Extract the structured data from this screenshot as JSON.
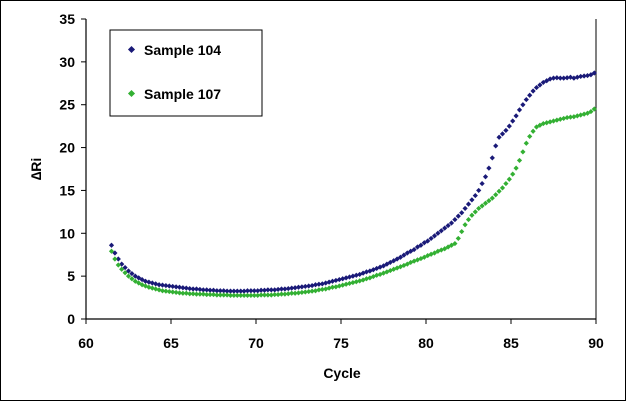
{
  "chart_data": {
    "type": "scatter",
    "title": "",
    "xlabel": "Cycle",
    "ylabel": "∆Ri",
    "xlim": [
      60,
      90
    ],
    "ylim": [
      0,
      35
    ],
    "xticks": [
      60,
      65,
      70,
      75,
      80,
      85,
      90
    ],
    "yticks": [
      0,
      5,
      10,
      15,
      20,
      25,
      30,
      35
    ],
    "grid": false,
    "legend": {
      "placement": "top-left",
      "boxed": true
    },
    "series": [
      {
        "name": "Sample 104",
        "color": "#1a1a78",
        "marker": "diamond",
        "points": [
          [
            61.5,
            8.6
          ],
          [
            61.7,
            7.7
          ],
          [
            61.9,
            7.0
          ],
          [
            62.1,
            6.4
          ],
          [
            62.3,
            6.0
          ],
          [
            62.5,
            5.6
          ],
          [
            62.7,
            5.3
          ],
          [
            62.9,
            5.0
          ],
          [
            63.1,
            4.8
          ],
          [
            63.3,
            4.6
          ],
          [
            63.5,
            4.4
          ],
          [
            63.7,
            4.3
          ],
          [
            63.9,
            4.2
          ],
          [
            64.1,
            4.1
          ],
          [
            64.3,
            4.0
          ],
          [
            64.5,
            3.95
          ],
          [
            64.7,
            3.9
          ],
          [
            64.9,
            3.85
          ],
          [
            65.1,
            3.8
          ],
          [
            65.3,
            3.75
          ],
          [
            65.5,
            3.7
          ],
          [
            65.7,
            3.65
          ],
          [
            65.9,
            3.6
          ],
          [
            66.1,
            3.55
          ],
          [
            66.3,
            3.5
          ],
          [
            66.5,
            3.5
          ],
          [
            66.7,
            3.45
          ],
          [
            66.9,
            3.4
          ],
          [
            67.1,
            3.4
          ],
          [
            67.3,
            3.35
          ],
          [
            67.5,
            3.35
          ],
          [
            67.7,
            3.3
          ],
          [
            67.9,
            3.3
          ],
          [
            68.1,
            3.3
          ],
          [
            68.3,
            3.25
          ],
          [
            68.5,
            3.25
          ],
          [
            68.7,
            3.25
          ],
          [
            68.9,
            3.25
          ],
          [
            69.1,
            3.25
          ],
          [
            69.3,
            3.25
          ],
          [
            69.5,
            3.3
          ],
          [
            69.7,
            3.3
          ],
          [
            69.9,
            3.3
          ],
          [
            70.1,
            3.3
          ],
          [
            70.3,
            3.35
          ],
          [
            70.5,
            3.35
          ],
          [
            70.7,
            3.4
          ],
          [
            70.9,
            3.4
          ],
          [
            71.1,
            3.4
          ],
          [
            71.3,
            3.45
          ],
          [
            71.5,
            3.5
          ],
          [
            71.7,
            3.5
          ],
          [
            71.9,
            3.55
          ],
          [
            72.1,
            3.6
          ],
          [
            72.3,
            3.65
          ],
          [
            72.5,
            3.7
          ],
          [
            72.7,
            3.75
          ],
          [
            72.9,
            3.8
          ],
          [
            73.1,
            3.85
          ],
          [
            73.3,
            3.9
          ],
          [
            73.5,
            4.0
          ],
          [
            73.7,
            4.05
          ],
          [
            73.9,
            4.1
          ],
          [
            74.1,
            4.2
          ],
          [
            74.3,
            4.3
          ],
          [
            74.5,
            4.4
          ],
          [
            74.7,
            4.5
          ],
          [
            74.9,
            4.6
          ],
          [
            75.1,
            4.7
          ],
          [
            75.3,
            4.8
          ],
          [
            75.5,
            4.9
          ],
          [
            75.7,
            5.0
          ],
          [
            75.9,
            5.1
          ],
          [
            76.1,
            5.2
          ],
          [
            76.3,
            5.35
          ],
          [
            76.5,
            5.5
          ],
          [
            76.7,
            5.6
          ],
          [
            76.9,
            5.75
          ],
          [
            77.1,
            5.9
          ],
          [
            77.3,
            6.05
          ],
          [
            77.5,
            6.2
          ],
          [
            77.7,
            6.4
          ],
          [
            77.9,
            6.6
          ],
          [
            78.1,
            6.8
          ],
          [
            78.3,
            7.0
          ],
          [
            78.5,
            7.2
          ],
          [
            78.7,
            7.45
          ],
          [
            78.9,
            7.7
          ],
          [
            79.1,
            7.9
          ],
          [
            79.3,
            8.1
          ],
          [
            79.5,
            8.4
          ],
          [
            79.7,
            8.6
          ],
          [
            79.9,
            8.9
          ],
          [
            80.1,
            9.1
          ],
          [
            80.3,
            9.4
          ],
          [
            80.5,
            9.7
          ],
          [
            80.7,
            10.0
          ],
          [
            80.9,
            10.3
          ],
          [
            81.1,
            10.6
          ],
          [
            81.3,
            10.9
          ],
          [
            81.5,
            11.2
          ],
          [
            81.7,
            11.6
          ],
          [
            81.9,
            12.0
          ],
          [
            82.1,
            12.4
          ],
          [
            82.3,
            12.9
          ],
          [
            82.5,
            13.4
          ],
          [
            82.7,
            13.9
          ],
          [
            82.9,
            14.4
          ],
          [
            83.1,
            15.0
          ],
          [
            83.3,
            15.8
          ],
          [
            83.5,
            16.6
          ],
          [
            83.7,
            17.6
          ],
          [
            83.9,
            18.8
          ],
          [
            84.1,
            20.2
          ],
          [
            84.3,
            21.2
          ],
          [
            84.5,
            21.6
          ],
          [
            84.7,
            22.0
          ],
          [
            84.9,
            22.5
          ],
          [
            85.1,
            23.1
          ],
          [
            85.3,
            23.7
          ],
          [
            85.5,
            24.4
          ],
          [
            85.7,
            25.0
          ],
          [
            85.9,
            25.6
          ],
          [
            86.1,
            26.1
          ],
          [
            86.3,
            26.6
          ],
          [
            86.5,
            27.0
          ],
          [
            86.7,
            27.3
          ],
          [
            86.9,
            27.6
          ],
          [
            87.1,
            27.8
          ],
          [
            87.3,
            28.0
          ],
          [
            87.5,
            28.1
          ],
          [
            87.7,
            28.15
          ],
          [
            87.9,
            28.1
          ],
          [
            88.1,
            28.1
          ],
          [
            88.3,
            28.15
          ],
          [
            88.5,
            28.2
          ],
          [
            88.7,
            28.1
          ],
          [
            88.9,
            28.2
          ],
          [
            89.1,
            28.3
          ],
          [
            89.3,
            28.35
          ],
          [
            89.5,
            28.4
          ],
          [
            89.7,
            28.5
          ],
          [
            89.9,
            28.7
          ]
        ]
      },
      {
        "name": "Sample 107",
        "color": "#33b033",
        "marker": "diamond",
        "points": [
          [
            61.5,
            7.9
          ],
          [
            61.7,
            7.0
          ],
          [
            61.9,
            6.3
          ],
          [
            62.1,
            5.8
          ],
          [
            62.3,
            5.4
          ],
          [
            62.5,
            5.0
          ],
          [
            62.7,
            4.7
          ],
          [
            62.9,
            4.4
          ],
          [
            63.1,
            4.2
          ],
          [
            63.3,
            4.0
          ],
          [
            63.5,
            3.85
          ],
          [
            63.7,
            3.7
          ],
          [
            63.9,
            3.6
          ],
          [
            64.1,
            3.5
          ],
          [
            64.3,
            3.4
          ],
          [
            64.5,
            3.3
          ],
          [
            64.7,
            3.25
          ],
          [
            64.9,
            3.2
          ],
          [
            65.1,
            3.15
          ],
          [
            65.3,
            3.1
          ],
          [
            65.5,
            3.05
          ],
          [
            65.7,
            3.0
          ],
          [
            65.9,
            3.0
          ],
          [
            66.1,
            2.95
          ],
          [
            66.3,
            2.95
          ],
          [
            66.5,
            2.9
          ],
          [
            66.7,
            2.9
          ],
          [
            66.9,
            2.9
          ],
          [
            67.1,
            2.85
          ],
          [
            67.3,
            2.85
          ],
          [
            67.5,
            2.85
          ],
          [
            67.7,
            2.8
          ],
          [
            67.9,
            2.8
          ],
          [
            68.1,
            2.8
          ],
          [
            68.3,
            2.8
          ],
          [
            68.5,
            2.75
          ],
          [
            68.7,
            2.75
          ],
          [
            68.9,
            2.75
          ],
          [
            69.1,
            2.75
          ],
          [
            69.3,
            2.75
          ],
          [
            69.5,
            2.75
          ],
          [
            69.7,
            2.75
          ],
          [
            69.9,
            2.75
          ],
          [
            70.1,
            2.75
          ],
          [
            70.3,
            2.8
          ],
          [
            70.5,
            2.8
          ],
          [
            70.7,
            2.8
          ],
          [
            70.9,
            2.8
          ],
          [
            71.1,
            2.85
          ],
          [
            71.3,
            2.85
          ],
          [
            71.5,
            2.9
          ],
          [
            71.7,
            2.9
          ],
          [
            71.9,
            2.95
          ],
          [
            72.1,
            3.0
          ],
          [
            72.3,
            3.0
          ],
          [
            72.5,
            3.05
          ],
          [
            72.7,
            3.1
          ],
          [
            72.9,
            3.15
          ],
          [
            73.1,
            3.2
          ],
          [
            73.3,
            3.25
          ],
          [
            73.5,
            3.3
          ],
          [
            73.7,
            3.4
          ],
          [
            73.9,
            3.45
          ],
          [
            74.1,
            3.5
          ],
          [
            74.3,
            3.6
          ],
          [
            74.5,
            3.7
          ],
          [
            74.7,
            3.75
          ],
          [
            74.9,
            3.85
          ],
          [
            75.1,
            3.95
          ],
          [
            75.3,
            4.05
          ],
          [
            75.5,
            4.15
          ],
          [
            75.7,
            4.25
          ],
          [
            75.9,
            4.35
          ],
          [
            76.1,
            4.45
          ],
          [
            76.3,
            4.55
          ],
          [
            76.5,
            4.7
          ],
          [
            76.7,
            4.8
          ],
          [
            76.9,
            4.95
          ],
          [
            77.1,
            5.1
          ],
          [
            77.3,
            5.2
          ],
          [
            77.5,
            5.35
          ],
          [
            77.7,
            5.5
          ],
          [
            77.9,
            5.65
          ],
          [
            78.1,
            5.8
          ],
          [
            78.3,
            5.95
          ],
          [
            78.5,
            6.1
          ],
          [
            78.7,
            6.25
          ],
          [
            78.9,
            6.4
          ],
          [
            79.1,
            6.6
          ],
          [
            79.3,
            6.75
          ],
          [
            79.5,
            6.9
          ],
          [
            79.7,
            7.05
          ],
          [
            79.9,
            7.2
          ],
          [
            80.1,
            7.4
          ],
          [
            80.3,
            7.55
          ],
          [
            80.5,
            7.7
          ],
          [
            80.7,
            7.9
          ],
          [
            80.9,
            8.05
          ],
          [
            81.1,
            8.2
          ],
          [
            81.3,
            8.4
          ],
          [
            81.5,
            8.6
          ],
          [
            81.7,
            8.8
          ],
          [
            81.9,
            9.4
          ],
          [
            82.1,
            10.2
          ],
          [
            82.3,
            11.0
          ],
          [
            82.5,
            11.6
          ],
          [
            82.7,
            12.1
          ],
          [
            82.9,
            12.5
          ],
          [
            83.1,
            12.9
          ],
          [
            83.3,
            13.2
          ],
          [
            83.5,
            13.5
          ],
          [
            83.7,
            13.8
          ],
          [
            83.9,
            14.1
          ],
          [
            84.1,
            14.5
          ],
          [
            84.3,
            14.9
          ],
          [
            84.5,
            15.3
          ],
          [
            84.7,
            15.8
          ],
          [
            84.9,
            16.3
          ],
          [
            85.1,
            16.9
          ],
          [
            85.3,
            17.6
          ],
          [
            85.5,
            18.5
          ],
          [
            85.7,
            19.5
          ],
          [
            85.9,
            20.5
          ],
          [
            86.1,
            21.3
          ],
          [
            86.3,
            21.9
          ],
          [
            86.5,
            22.4
          ],
          [
            86.7,
            22.6
          ],
          [
            86.9,
            22.8
          ],
          [
            87.1,
            22.9
          ],
          [
            87.3,
            23.0
          ],
          [
            87.5,
            23.1
          ],
          [
            87.7,
            23.2
          ],
          [
            87.9,
            23.3
          ],
          [
            88.1,
            23.4
          ],
          [
            88.3,
            23.5
          ],
          [
            88.5,
            23.55
          ],
          [
            88.7,
            23.6
          ],
          [
            88.9,
            23.7
          ],
          [
            89.1,
            23.8
          ],
          [
            89.3,
            23.9
          ],
          [
            89.5,
            24.0
          ],
          [
            89.7,
            24.2
          ],
          [
            89.9,
            24.5
          ]
        ]
      }
    ]
  }
}
